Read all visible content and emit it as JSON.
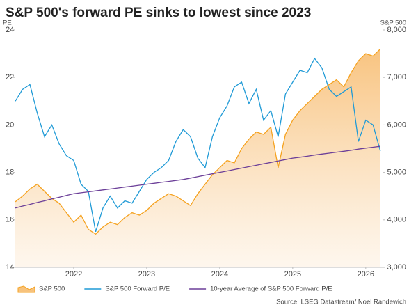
{
  "chart_data": {
    "type": "line",
    "title": "S&P 500's forward PE sinks to lowest since 2023",
    "y_label": "PE",
    "y2_label": "S&P 500",
    "source": "Source: LSEG Datastream/ Noel Randewich",
    "x": [
      2021.7,
      2021.8,
      2021.9,
      2022.0,
      2022.1,
      2022.2,
      2022.3,
      2022.4,
      2022.5,
      2022.6,
      2022.7,
      2022.8,
      2022.9,
      2023.0,
      2023.1,
      2023.2,
      2023.3,
      2023.4,
      2023.5,
      2023.6,
      2023.7,
      2023.8,
      2023.9,
      2024.0,
      2024.1,
      2024.2,
      2024.3,
      2024.4,
      2024.5,
      2024.6,
      2024.7,
      2024.8,
      2024.9,
      2025.0,
      2025.1,
      2025.2,
      2025.3,
      2025.4,
      2025.5,
      2025.6,
      2025.7,
      2025.8,
      2025.9,
      2026.0,
      2026.1,
      2026.2,
      2026.3,
      2026.4,
      2026.5,
      2026.6,
      2026.7
    ],
    "xlim": [
      2021.7,
      2026.74
    ],
    "xticks": [
      {
        "value": 2022.5,
        "label": "2022"
      },
      {
        "value": 2023.5,
        "label": "2023"
      },
      {
        "value": 2024.5,
        "label": "2024"
      },
      {
        "value": 2025.5,
        "label": "2025"
      },
      {
        "value": 2026.5,
        "label": "2026"
      }
    ],
    "ylim": [
      14,
      24
    ],
    "yticks": [
      14,
      16,
      18,
      20,
      22,
      24
    ],
    "y2lim": [
      3000,
      8000
    ],
    "y2ticks": [
      {
        "value": 3000,
        "label": "3,000"
      },
      {
        "value": 4000,
        "label": "4,000"
      },
      {
        "value": 5000,
        "label": "5,000"
      },
      {
        "value": 6000,
        "label": "6,000"
      },
      {
        "value": 7000,
        "label": "7,000"
      },
      {
        "value": 8000,
        "label": "8,000"
      }
    ],
    "series": [
      {
        "name": "S&P 500",
        "color": "#f5a21f",
        "axis": "y2",
        "fill": true,
        "values": [
          4380,
          4500,
          4650,
          4750,
          4600,
          4450,
          4350,
          4150,
          3950,
          4100,
          3800,
          3700,
          3850,
          3950,
          3900,
          4050,
          4150,
          4100,
          4200,
          4350,
          4450,
          4550,
          4500,
          4400,
          4300,
          4550,
          4750,
          4950,
          5100,
          5250,
          5200,
          5500,
          5700,
          5850,
          5800,
          5950,
          5100,
          5800,
          6100,
          6300,
          6450,
          6600,
          6750,
          6850,
          6950,
          6800,
          7100,
          7350,
          7500,
          7450,
          7600
        ]
      },
      {
        "name": "S&P 500 Forward P/E",
        "color": "#1f9ad6",
        "values": [
          21.0,
          21.5,
          21.7,
          20.5,
          19.5,
          20.0,
          19.2,
          18.7,
          18.5,
          17.5,
          17.2,
          15.5,
          16.5,
          17.0,
          16.5,
          16.8,
          16.7,
          17.2,
          17.7,
          18.0,
          18.2,
          18.5,
          19.3,
          19.8,
          19.5,
          18.6,
          18.2,
          19.5,
          20.3,
          20.8,
          21.6,
          21.8,
          20.9,
          21.5,
          20.2,
          20.6,
          19.5,
          21.3,
          21.8,
          22.3,
          22.2,
          22.8,
          22.4,
          21.5,
          21.2,
          21.4,
          21.6,
          19.3,
          20.2,
          20.0,
          18.9
        ]
      },
      {
        "name": "10-year Average of S&P 500 Forward P/E",
        "color": "#6b3e98",
        "values": [
          16.5,
          16.58,
          16.65,
          16.73,
          16.8,
          16.88,
          16.95,
          17.03,
          17.1,
          17.14,
          17.18,
          17.22,
          17.26,
          17.3,
          17.34,
          17.38,
          17.42,
          17.46,
          17.5,
          17.54,
          17.58,
          17.62,
          17.66,
          17.7,
          17.76,
          17.82,
          17.88,
          17.94,
          18.0,
          18.06,
          18.12,
          18.18,
          18.24,
          18.3,
          18.36,
          18.42,
          18.48,
          18.54,
          18.6,
          18.64,
          18.68,
          18.73,
          18.77,
          18.81,
          18.85,
          18.89,
          18.93,
          18.98,
          19.02,
          19.06,
          19.1
        ]
      }
    ]
  }
}
